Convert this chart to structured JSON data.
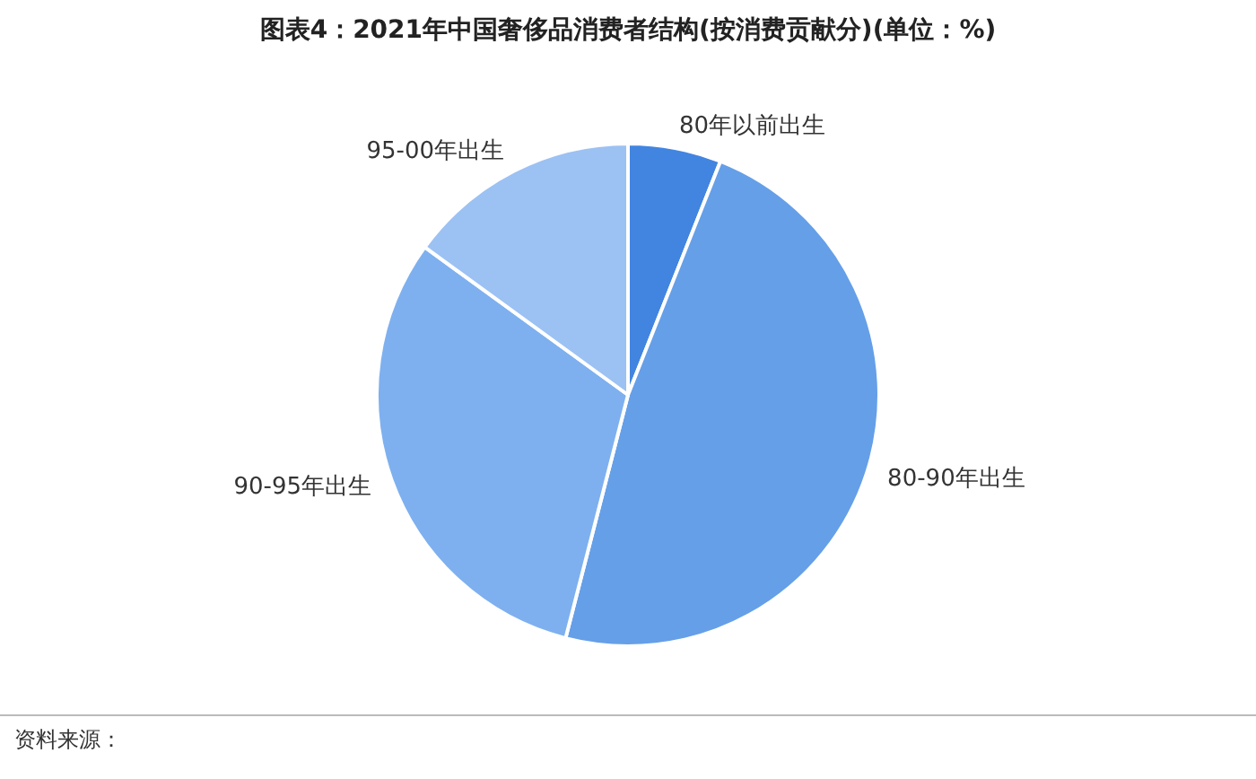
{
  "chart_data": {
    "type": "pie",
    "title": "图表4：2021年中国奢侈品消费者结构(按消费贡献分)(单位：%)",
    "categories": [
      "80年以前出生",
      "80-90年出生",
      "90-95年出生",
      "95-00年出生"
    ],
    "values": [
      6,
      48,
      31,
      15
    ],
    "colors": [
      "#4285e0",
      "#659fe8",
      "#7eb0ef",
      "#9cc1f3"
    ],
    "legend": false,
    "annotations": [
      "资料来源："
    ]
  }
}
